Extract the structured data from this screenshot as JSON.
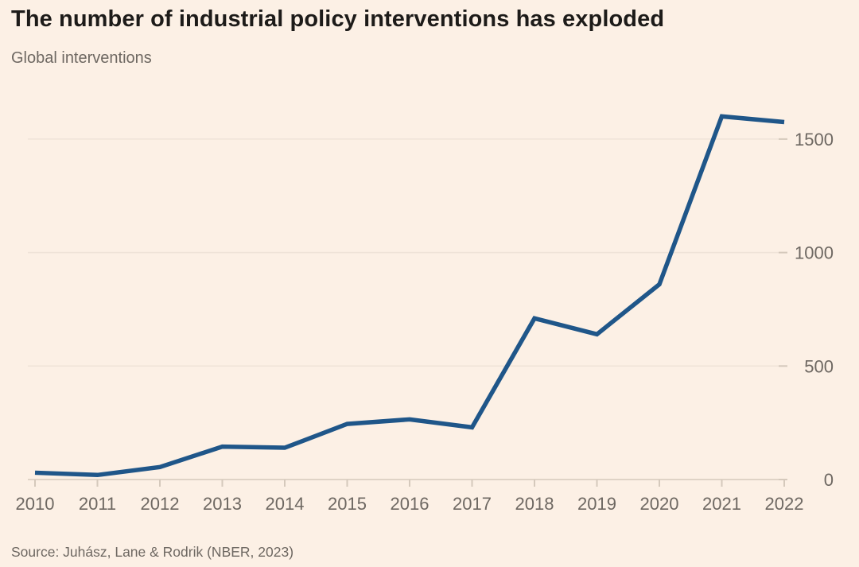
{
  "header": {
    "title": "The number of industrial policy interventions has exploded",
    "subtitle": "Global interventions"
  },
  "footer": {
    "source": "Source: Juhász, Lane & Rodrik (NBER, 2023)"
  },
  "colors": {
    "background": "#FCF0E5",
    "line": "#1F5689",
    "grid": "#EFE3D8",
    "axis": "#D5C9BC",
    "title_text": "#1D1B19",
    "muted_text": "#6E6862"
  },
  "chart_data": {
    "type": "line",
    "title": "The number of industrial policy interventions has exploded",
    "subtitle": "Global interventions",
    "x": [
      2010,
      2011,
      2012,
      2013,
      2014,
      2015,
      2016,
      2017,
      2018,
      2019,
      2020,
      2021,
      2022
    ],
    "series": [
      {
        "name": "Global interventions",
        "values": [
          30,
          20,
          55,
          145,
          140,
          245,
          265,
          230,
          710,
          640,
          860,
          1600,
          1575
        ]
      }
    ],
    "yticks": [
      0,
      500,
      1000,
      1500
    ],
    "ylim": [
      0,
      1650
    ],
    "xlabel": "",
    "ylabel": "",
    "grid": "horizontal-only",
    "y_axis_side": "right",
    "legend": "none",
    "source": "Source: Juhász, Lane & Rodrik (NBER, 2023)"
  }
}
